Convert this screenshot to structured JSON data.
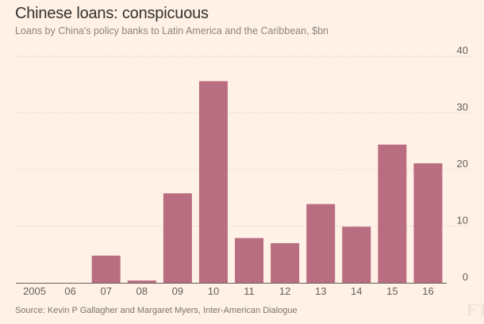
{
  "header": {
    "title": "Chinese loans: conspicuous",
    "subtitle": "Loans by China's policy banks to Latin America and the Caribbean, $bn"
  },
  "footer": {
    "source": "Source: Kevin P Gallagher and Margaret Myers, Inter-American Dialogue",
    "logo": "FT"
  },
  "colors": {
    "bar": "#b96d80",
    "background": "#fff1e5",
    "grid": "#d9cdc2",
    "axis": "#66605c"
  },
  "chart_data": {
    "type": "bar",
    "title": "Chinese loans: conspicuous",
    "subtitle": "Loans by China's policy banks to Latin America and the Caribbean, $bn",
    "xlabel": "",
    "ylabel": "$bn",
    "categories": [
      "2005",
      "06",
      "07",
      "08",
      "09",
      "10",
      "11",
      "12",
      "13",
      "14",
      "15",
      "16"
    ],
    "values": [
      0,
      0,
      4.8,
      0.4,
      15.8,
      35.6,
      7.9,
      7.0,
      13.9,
      9.9,
      24.4,
      21.1
    ],
    "ylim": [
      0,
      40
    ],
    "yticks": [
      0,
      10,
      20,
      30,
      40
    ],
    "y_axis_position": "right",
    "grid": true
  }
}
